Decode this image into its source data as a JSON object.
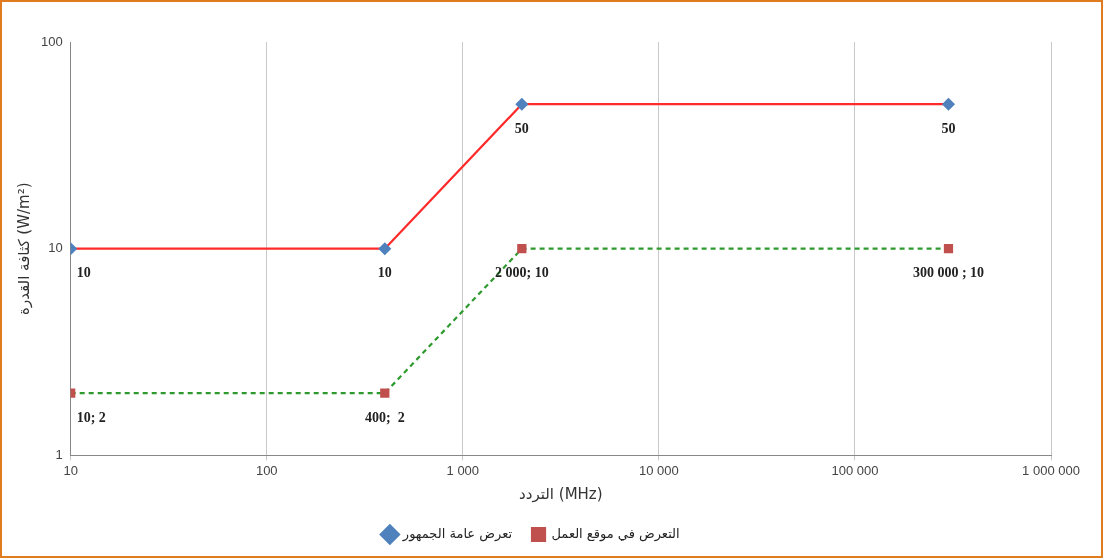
{
  "chart_data": {
    "type": "line",
    "xlabel": "التردد (MHz)",
    "ylabel": "كثافة القدرة (W/m²)",
    "log": "xy",
    "grid": "x",
    "legend": "bottom",
    "xlim": [
      10,
      1000000
    ],
    "xticks": [
      10,
      100,
      {
        "value": 1000,
        "label": "1 000"
      },
      {
        "value": 10000,
        "label": "10 000"
      },
      {
        "value": 100000,
        "label": "100 000"
      },
      {
        "value": 1000000,
        "label": "1 000 000"
      }
    ],
    "ylim": [
      1,
      100
    ],
    "yticks": [
      1,
      10,
      100
    ],
    "series": [
      {
        "name": "تعرض عامة الجمهور",
        "color": "#ff2a2a",
        "colors": [
          "#4f81bd",
          "#4f81bd",
          "#4f81bd",
          "#4f81bd"
        ],
        "marker": "diamond",
        "line_style": "solid",
        "x": [
          10,
          400,
          2000,
          300000
        ],
        "values": [
          10,
          10,
          50,
          50
        ],
        "value_labels": [
          "10",
          "10",
          "50",
          "50"
        ]
      },
      {
        "name": "التعرض في موقع العمل",
        "color": "#2e9a2e",
        "colors": [
          "#c0504d",
          "#c0504d",
          "#c0504d",
          "#c0504d"
        ],
        "marker": "square",
        "line_style": "dashed",
        "x": [
          10,
          400,
          2000,
          300000
        ],
        "values": [
          2,
          2,
          10,
          10
        ],
        "value_labels": [
          "10; 2",
          "400;  2",
          "2 000; 10",
          "300 000 ; 10"
        ]
      }
    ]
  }
}
